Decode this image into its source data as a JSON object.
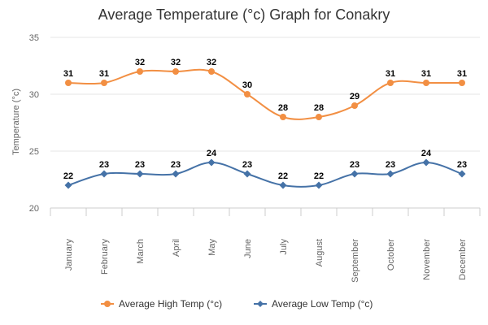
{
  "colors": {
    "high": "#f28f43",
    "low": "#4572a7",
    "grid": "#e6e6e6",
    "axis": "#cccccc",
    "text": "#333333"
  },
  "chart_data": {
    "type": "line",
    "title": "Average Temperature (°c) Graph for Conakry",
    "xlabel": "",
    "ylabel": "Temperature (°c)",
    "ylim": [
      20,
      35
    ],
    "yticks": [
      20,
      25,
      30,
      35
    ],
    "grid": true,
    "legend_position": "bottom-center",
    "categories": [
      "January",
      "February",
      "March",
      "April",
      "May",
      "June",
      "July",
      "August",
      "September",
      "October",
      "November",
      "December"
    ],
    "series": [
      {
        "name": "Average High Temp (°c)",
        "color": "#f28f43",
        "marker": "circle",
        "values": [
          31,
          31,
          32,
          32,
          32,
          30,
          28,
          28,
          29,
          31,
          31,
          31
        ]
      },
      {
        "name": "Average Low Temp (°c)",
        "color": "#4572a7",
        "marker": "diamond",
        "values": [
          22,
          23,
          23,
          23,
          24,
          23,
          22,
          22,
          23,
          23,
          24,
          23
        ]
      }
    ]
  }
}
